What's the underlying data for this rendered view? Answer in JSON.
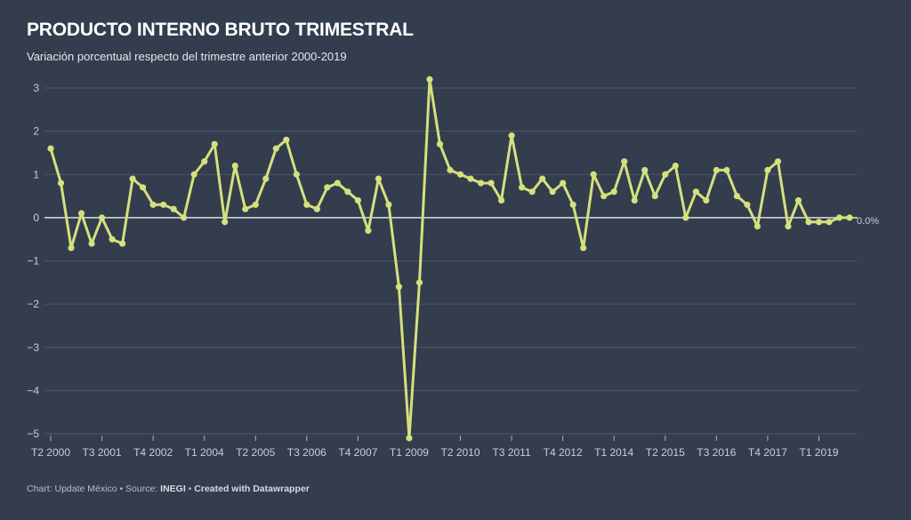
{
  "title": "PRODUCTO INTERNO BRUTO TRIMESTRAL",
  "subtitle": "Variación porcentual respecto del trimestre anterior 2000-2019",
  "footer": {
    "prefix": "Chart: Update México • Source: ",
    "source": "INEGI",
    "separator": " • ",
    "credit": "Created with Datawrapper"
  },
  "colors": {
    "background": "#333d4d",
    "line": "#d5e07e",
    "grid": "#4d5768",
    "zero_line": "#ffffff"
  },
  "chart_data": {
    "type": "line",
    "title": "PRODUCTO INTERNO BRUTO TRIMESTRAL",
    "subtitle": "Variación porcentual respecto del trimestre anterior 2000-2019",
    "xlabel": "",
    "ylabel": "",
    "ylim": [
      -5,
      3
    ],
    "yticks": [
      3,
      2,
      1,
      0,
      -1,
      -2,
      -3,
      -4,
      -5
    ],
    "ytick_labels": [
      "3",
      "2",
      "1",
      "0",
      "−1",
      "−2",
      "−3",
      "−4",
      "−5"
    ],
    "grid": true,
    "x": [
      "T2 2000",
      "T3 2000",
      "T4 2000",
      "T1 2001",
      "T2 2001",
      "T3 2001",
      "T4 2001",
      "T1 2002",
      "T2 2002",
      "T3 2002",
      "T4 2002",
      "T1 2003",
      "T2 2003",
      "T3 2003",
      "T4 2003",
      "T1 2004",
      "T2 2004",
      "T3 2004",
      "T4 2004",
      "T1 2005",
      "T2 2005",
      "T3 2005",
      "T4 2005",
      "T1 2006",
      "T2 2006",
      "T3 2006",
      "T4 2006",
      "T1 2007",
      "T2 2007",
      "T3 2007",
      "T4 2007",
      "T1 2008",
      "T2 2008",
      "T3 2008",
      "T4 2008",
      "T1 2009",
      "T2 2009",
      "T3 2009",
      "T4 2009",
      "T1 2010",
      "T2 2010",
      "T3 2010",
      "T4 2010",
      "T1 2011",
      "T2 2011",
      "T3 2011",
      "T4 2011",
      "T1 2012",
      "T2 2012",
      "T3 2012",
      "T4 2012",
      "T1 2013",
      "T2 2013",
      "T3 2013",
      "T4 2013",
      "T1 2014",
      "T2 2014",
      "T3 2014",
      "T4 2014",
      "T1 2015",
      "T2 2015",
      "T3 2015",
      "T4 2015",
      "T1 2016",
      "T2 2016",
      "T3 2016",
      "T4 2016",
      "T1 2017",
      "T2 2017",
      "T3 2017",
      "T4 2017",
      "T1 2018",
      "T2 2018",
      "T3 2018",
      "T4 2018",
      "T1 2019",
      "T2 2019",
      "T3 2019",
      "T4 2019"
    ],
    "x_tick_labels": [
      "T2 2000",
      "T3 2001",
      "T4 2002",
      "T1 2004",
      "T2 2005",
      "T3 2006",
      "T4 2007",
      "T1 2009",
      "T2 2010",
      "T3 2011",
      "T4 2012",
      "T1 2014",
      "T2 2015",
      "T3 2016",
      "T4 2017",
      "T1 2019"
    ],
    "series": [
      {
        "values": [
          1.6,
          0.8,
          -0.7,
          0.1,
          -0.6,
          0.0,
          -0.5,
          -0.6,
          0.9,
          0.7,
          0.3,
          0.3,
          0.2,
          0.0,
          1.0,
          1.3,
          1.7,
          -0.1,
          1.2,
          0.2,
          0.3,
          0.9,
          1.6,
          1.8,
          1.0,
          0.3,
          0.2,
          0.7,
          0.8,
          0.6,
          0.4,
          -0.3,
          0.9,
          0.3,
          -1.6,
          -5.1,
          -1.5,
          3.2,
          1.7,
          1.1,
          1.0,
          0.9,
          0.8,
          0.8,
          0.4,
          1.9,
          0.7,
          0.6,
          0.9,
          0.6,
          0.8,
          0.3,
          -0.7,
          1.0,
          0.5,
          0.6,
          1.3,
          0.4,
          1.1,
          0.5,
          1.0,
          1.2,
          0.0,
          0.6,
          0.4,
          1.1,
          1.1,
          0.5,
          0.3,
          -0.2,
          1.1,
          1.3,
          -0.2,
          0.4,
          -0.1,
          -0.1,
          -0.1,
          0.0,
          0.0
        ]
      }
    ],
    "end_label": "0.0%"
  }
}
